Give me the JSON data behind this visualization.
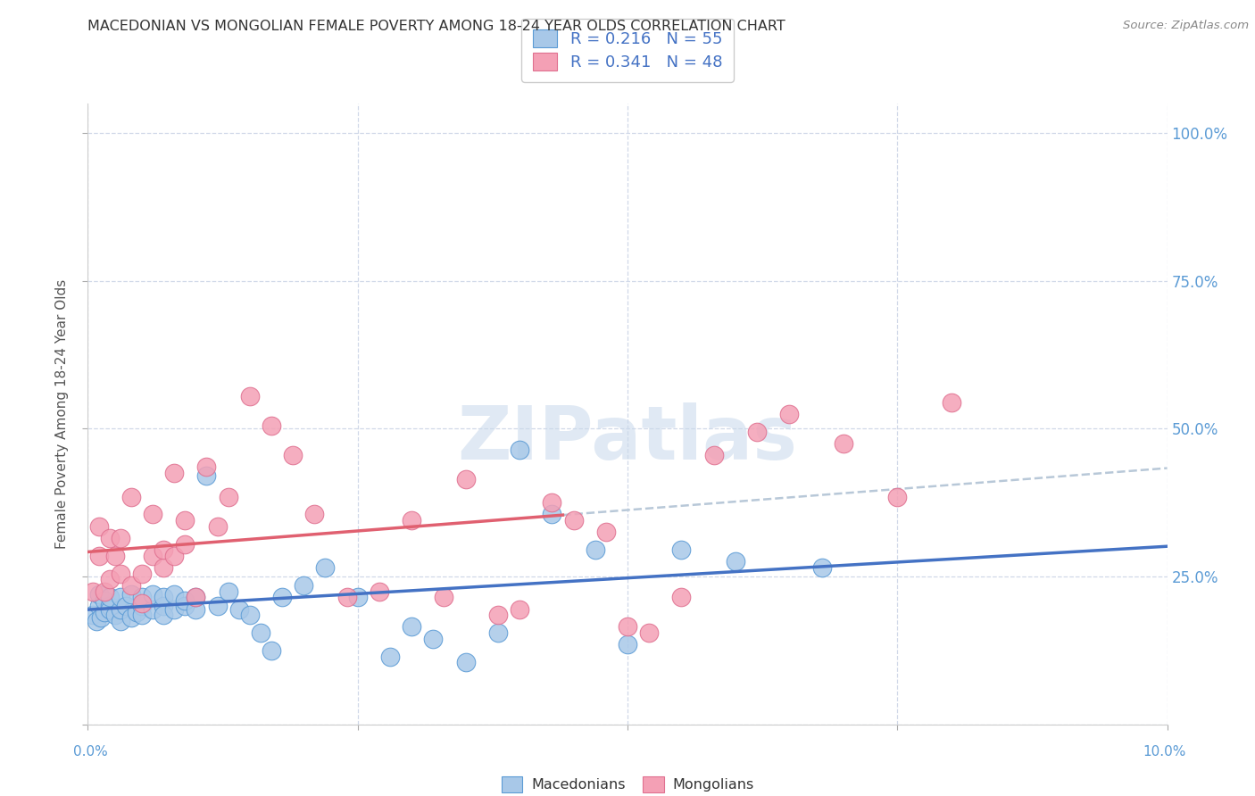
{
  "title": "MACEDONIAN VS MONGOLIAN FEMALE POVERTY AMONG 18-24 YEAR OLDS CORRELATION CHART",
  "source": "Source: ZipAtlas.com",
  "ylabel": "Female Poverty Among 18-24 Year Olds",
  "xlim": [
    0.0,
    0.1
  ],
  "ylim": [
    0.0,
    1.05
  ],
  "macedonian_color": "#a8c8e8",
  "mongolian_color": "#f4a0b5",
  "macedonian_edge_color": "#5b9bd5",
  "mongolian_edge_color": "#e07090",
  "macedonian_line_color": "#4472c4",
  "mongolian_line_color": "#e06070",
  "macedonian_R": 0.216,
  "macedonian_N": 55,
  "mongolian_R": 0.341,
  "mongolian_N": 48,
  "macedonian_scatter_x": [
    0.0005,
    0.0008,
    0.001,
    0.001,
    0.0012,
    0.0015,
    0.0015,
    0.002,
    0.002,
    0.002,
    0.0025,
    0.003,
    0.003,
    0.003,
    0.0035,
    0.004,
    0.004,
    0.0045,
    0.005,
    0.005,
    0.005,
    0.006,
    0.006,
    0.007,
    0.007,
    0.007,
    0.008,
    0.008,
    0.009,
    0.009,
    0.01,
    0.01,
    0.011,
    0.012,
    0.013,
    0.014,
    0.015,
    0.016,
    0.017,
    0.018,
    0.02,
    0.022,
    0.025,
    0.028,
    0.03,
    0.032,
    0.035,
    0.038,
    0.04,
    0.043,
    0.047,
    0.05,
    0.055,
    0.06,
    0.068
  ],
  "macedonian_scatter_y": [
    0.185,
    0.175,
    0.2,
    0.22,
    0.18,
    0.19,
    0.21,
    0.2,
    0.195,
    0.215,
    0.185,
    0.175,
    0.195,
    0.215,
    0.2,
    0.18,
    0.22,
    0.19,
    0.2,
    0.215,
    0.185,
    0.195,
    0.22,
    0.2,
    0.215,
    0.185,
    0.195,
    0.22,
    0.2,
    0.21,
    0.195,
    0.215,
    0.42,
    0.2,
    0.225,
    0.195,
    0.185,
    0.155,
    0.125,
    0.215,
    0.235,
    0.265,
    0.215,
    0.115,
    0.165,
    0.145,
    0.105,
    0.155,
    0.465,
    0.355,
    0.295,
    0.135,
    0.295,
    0.275,
    0.265
  ],
  "mongolian_scatter_x": [
    0.0005,
    0.001,
    0.001,
    0.0015,
    0.002,
    0.002,
    0.0025,
    0.003,
    0.003,
    0.004,
    0.004,
    0.005,
    0.005,
    0.006,
    0.006,
    0.007,
    0.007,
    0.008,
    0.008,
    0.009,
    0.009,
    0.01,
    0.011,
    0.012,
    0.013,
    0.015,
    0.017,
    0.019,
    0.021,
    0.024,
    0.027,
    0.03,
    0.033,
    0.035,
    0.038,
    0.04,
    0.043,
    0.045,
    0.048,
    0.05,
    0.052,
    0.055,
    0.058,
    0.062,
    0.065,
    0.07,
    0.075,
    0.08
  ],
  "mongolian_scatter_y": [
    0.225,
    0.285,
    0.335,
    0.225,
    0.315,
    0.245,
    0.285,
    0.255,
    0.315,
    0.235,
    0.385,
    0.255,
    0.205,
    0.355,
    0.285,
    0.265,
    0.295,
    0.425,
    0.285,
    0.345,
    0.305,
    0.215,
    0.435,
    0.335,
    0.385,
    0.555,
    0.505,
    0.455,
    0.355,
    0.215,
    0.225,
    0.345,
    0.215,
    0.415,
    0.185,
    0.195,
    0.375,
    0.345,
    0.325,
    0.165,
    0.155,
    0.215,
    0.455,
    0.495,
    0.525,
    0.475,
    0.385,
    0.545
  ],
  "watermark_text": "ZIPatlas",
  "background_color": "#ffffff",
  "grid_color": "#d0d8e8",
  "right_tick_color": "#5b9bd5",
  "title_color": "#333333",
  "source_color": "#888888",
  "ylabel_color": "#555555"
}
